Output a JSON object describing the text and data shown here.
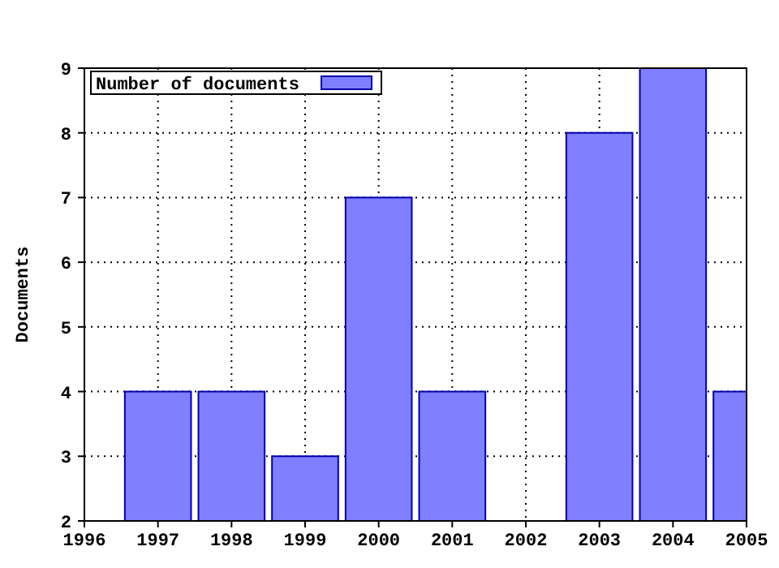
{
  "chart_data": {
    "type": "bar",
    "ylabel": "Documents",
    "x": [
      1997,
      1998,
      1999,
      2000,
      2001,
      2003,
      2004,
      2005
    ],
    "series": [
      {
        "name": "Number of documents",
        "color": "#7f7fff",
        "values": [
          4,
          4,
          3,
          7,
          4,
          8,
          9,
          4
        ]
      }
    ],
    "xlim": [
      1996,
      2005
    ],
    "xticks": [
      1996,
      1997,
      1998,
      1999,
      2000,
      2001,
      2002,
      2003,
      2004,
      2005
    ],
    "ylim": [
      2,
      9
    ],
    "yticks": [
      2,
      3,
      4,
      5,
      6,
      7,
      8,
      9
    ],
    "grid": true,
    "legend": "top left"
  }
}
